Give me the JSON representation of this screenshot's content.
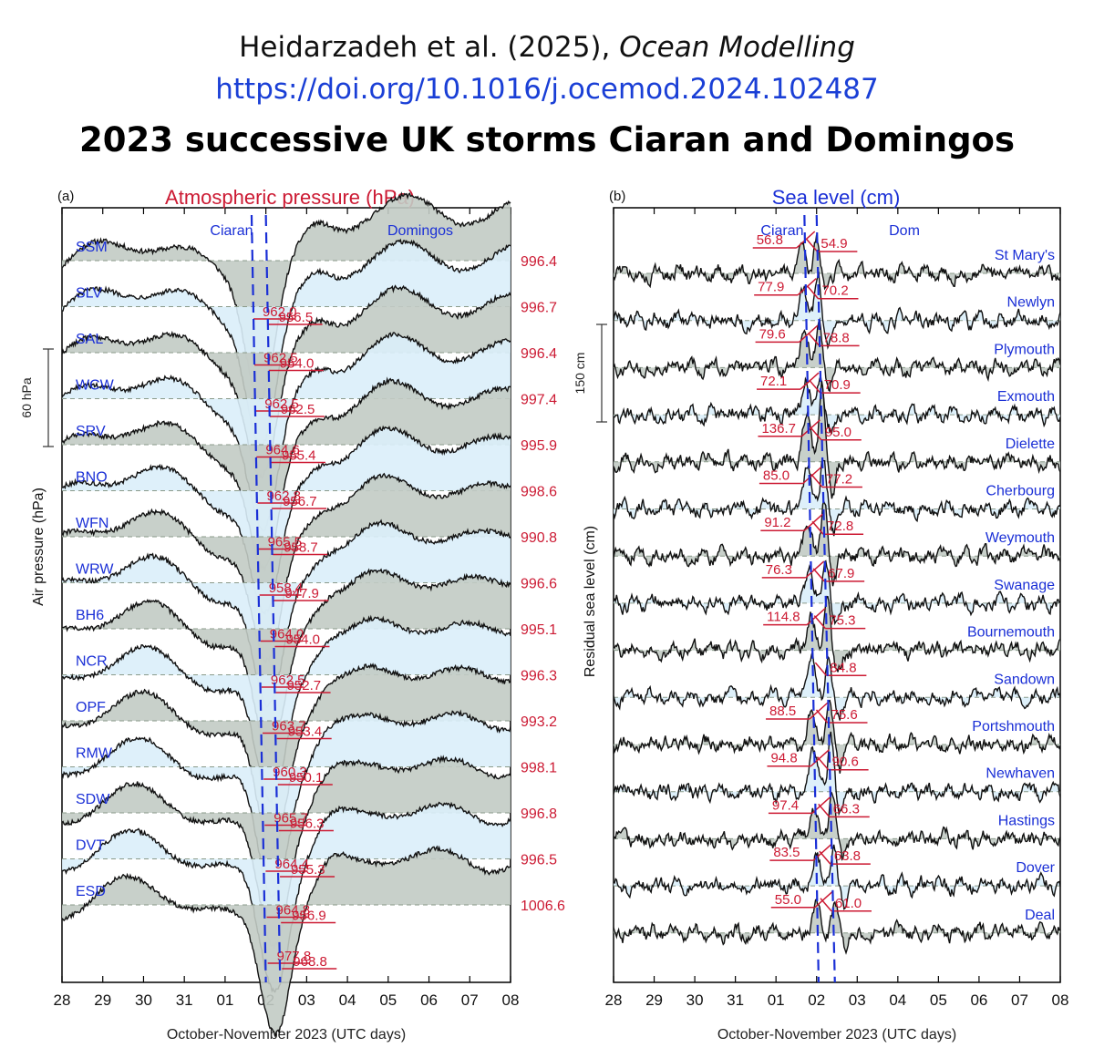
{
  "header": {
    "citation_authors": "Heidarzadeh et al. (2025),",
    "citation_journal": "Ocean Modelling",
    "doi": "https://doi.org/10.1016/j.ocemod.2024.102487",
    "title": "2023 successive UK storms Ciaran and Domingos"
  },
  "colors": {
    "red": "#cc1a33",
    "blue": "#1a2fd6",
    "gray_fill": "#c2cbc4",
    "blue_fill": "#daeefa",
    "trace": "#111111"
  },
  "chart_data": [
    {
      "type": "line",
      "panel_label": "(a)",
      "title": "Atmospheric pressure (hPa)",
      "xlabel": "October-November 2023 (UTC days)",
      "ylabel": "Air pressure (hPa)",
      "x_tick_labels": [
        "28",
        "29",
        "30",
        "31",
        "01",
        "02",
        "03",
        "04",
        "05",
        "06",
        "07",
        "08"
      ],
      "xlim": [
        0,
        11
      ],
      "scale_bar_label": "60 hPa",
      "scale_bar_value": 60,
      "events": [
        {
          "name": "Ciaran",
          "day_start": 5.0,
          "day_end": 5.35
        },
        {
          "name": "Domingos",
          "day_start": 4.65,
          "day_end": 5.0
        }
      ],
      "series": [
        {
          "name": "SSM",
          "mean": "996.4",
          "min_ciaran": "956.5",
          "min_domingos": "962.0"
        },
        {
          "name": "SLV",
          "mean": "996.7",
          "min_ciaran": "954.0",
          "min_domingos": "962.5"
        },
        {
          "name": "SAL",
          "mean": "996.4",
          "min_ciaran": "962.5",
          "min_domingos": "962.5"
        },
        {
          "name": "WCW",
          "mean": "997.4",
          "min_ciaran": "955.4",
          "min_domingos": "964.6"
        },
        {
          "name": "SRV",
          "mean": "995.9",
          "min_ciaran": "956.7",
          "min_domingos": "962.8"
        },
        {
          "name": "BNO",
          "mean": "998.6",
          "min_ciaran": "958.7",
          "min_domingos": "965.5"
        },
        {
          "name": "WFN",
          "mean": "990.8",
          "min_ciaran": "947.9",
          "min_domingos": "958.4"
        },
        {
          "name": "WRW",
          "mean": "996.6",
          "min_ciaran": "954.0",
          "min_domingos": "964.0"
        },
        {
          "name": "BH6",
          "mean": "995.1",
          "min_ciaran": "952.7",
          "min_domingos": "962.5"
        },
        {
          "name": "NCR",
          "mean": "996.3",
          "min_ciaran": "953.4",
          "min_domingos": "963.7"
        },
        {
          "name": "OPF",
          "mean": "993.2",
          "min_ciaran": "950.1",
          "min_domingos": "960.3"
        },
        {
          "name": "RMW",
          "mean": "998.1",
          "min_ciaran": "956.3",
          "min_domingos": "965.7"
        },
        {
          "name": "SDW",
          "mean": "996.8",
          "min_ciaran": "955.3",
          "min_domingos": "964.4"
        },
        {
          "name": "DVT",
          "mean": "996.5",
          "min_ciaran": "956.9",
          "min_domingos": "964.8"
        },
        {
          "name": "ESD",
          "mean": "1006.6",
          "min_ciaran": "968.8",
          "min_domingos": "977.8"
        }
      ]
    },
    {
      "type": "line",
      "panel_label": "(b)",
      "title": "Sea level (cm)",
      "xlabel": "October-November 2023 (UTC days)",
      "ylabel": "Residual sea level (cm)",
      "x_tick_labels": [
        "28",
        "29",
        "30",
        "31",
        "01",
        "02",
        "03",
        "04",
        "05",
        "06",
        "07",
        "08"
      ],
      "xlim": [
        0,
        11
      ],
      "scale_bar_label": "150 cm",
      "scale_bar_value": 150,
      "events": [
        {
          "name": "Ciaran",
          "day_start": 5.0,
          "day_end": 5.45
        },
        {
          "name": "Dom",
          "day_start": 4.7,
          "day_end": 5.05
        }
      ],
      "series": [
        {
          "name": "St Mary's",
          "max_ciaran": "56.8",
          "max_domingos": "54.9"
        },
        {
          "name": "Newlyn",
          "max_ciaran": "77.9",
          "max_domingos": "70.2"
        },
        {
          "name": "Plymouth",
          "max_ciaran": "79.6",
          "max_domingos": "78.8"
        },
        {
          "name": "Exmouth",
          "max_ciaran": "72.1",
          "max_domingos": "70.9"
        },
        {
          "name": "Dielette",
          "max_ciaran": "136.7",
          "max_domingos": "95.0"
        },
        {
          "name": "Cherbourg",
          "max_ciaran": "85.0",
          "max_domingos": "77.2"
        },
        {
          "name": "Weymouth",
          "max_ciaran": "91.2",
          "max_domingos": "72.8"
        },
        {
          "name": "Swanage",
          "max_ciaran": "76.3",
          "max_domingos": "67.9"
        },
        {
          "name": "Bournemouth",
          "max_ciaran": "114.8",
          "max_domingos": "75.3"
        },
        {
          "name": "Sandown",
          "max_ciaran": "",
          "max_domingos": "84.8"
        },
        {
          "name": "Portshmouth",
          "max_ciaran": "88.5",
          "max_domingos": "75.6"
        },
        {
          "name": "Newhaven",
          "max_ciaran": "94.8",
          "max_domingos": "90.6"
        },
        {
          "name": "Hastings",
          "max_ciaran": "97.4",
          "max_domingos": "66.3"
        },
        {
          "name": "Dover",
          "max_ciaran": "83.5",
          "max_domingos": "63.8"
        },
        {
          "name": "Deal",
          "max_ciaran": "55.0",
          "max_domingos": "61.0"
        }
      ]
    }
  ]
}
